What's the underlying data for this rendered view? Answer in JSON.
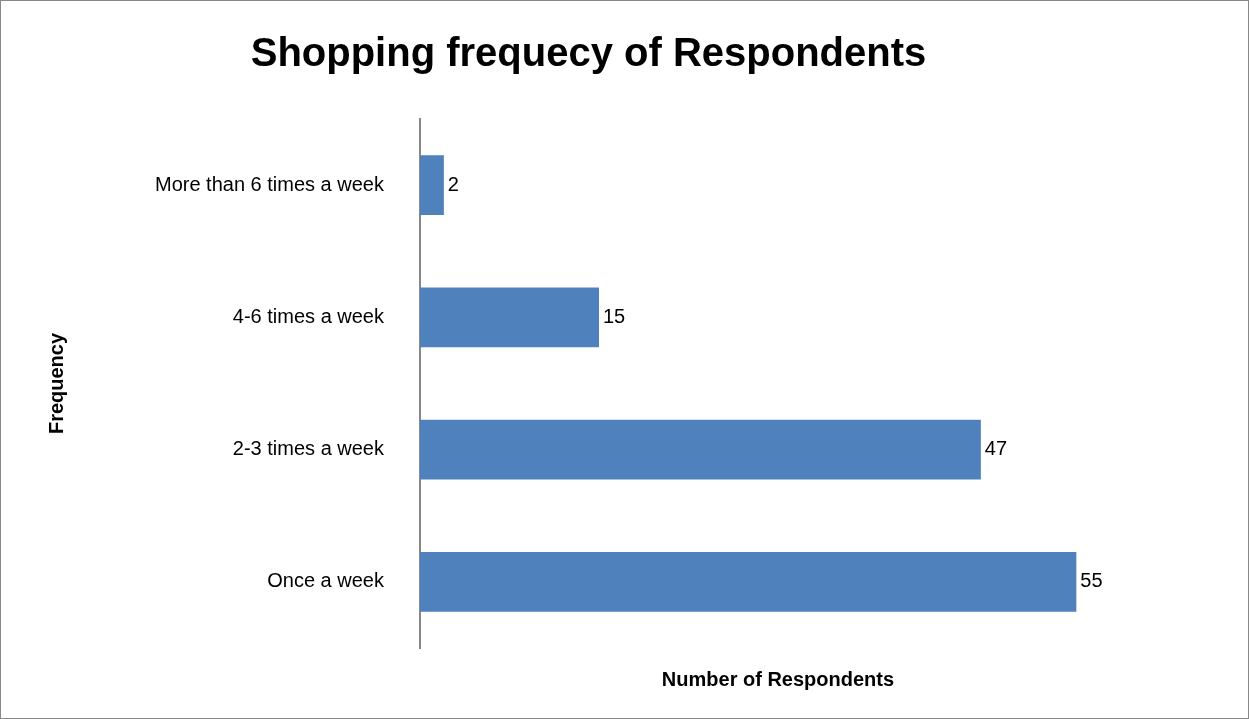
{
  "chart_data": {
    "type": "bar",
    "orientation": "horizontal",
    "title": "Shopping frequecy of Respondents",
    "xlabel": "Number of Respondents",
    "ylabel": "Frequency",
    "categories": [
      "More than 6 times a week",
      "4-6 times a week",
      "2-3 times a week",
      "Once a week"
    ],
    "series": [
      {
        "color": "#4f81bd",
        "values": [
          2,
          15,
          47,
          55
        ]
      }
    ],
    "data_labels": true,
    "grid": false,
    "legend": false
  }
}
